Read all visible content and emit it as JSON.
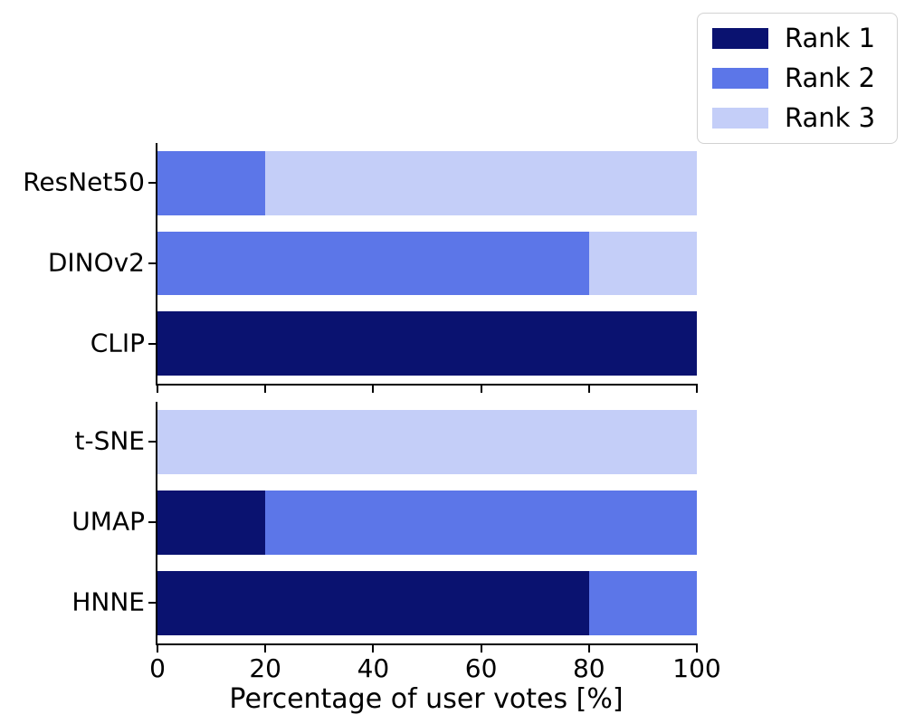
{
  "figure": {
    "background": "#ffffff"
  },
  "colors": {
    "series": [
      "#0a1270",
      "#5c76e8",
      "#c4cef8"
    ],
    "axis": "#000000",
    "text": "#000000",
    "legend_border": "#d2d2d2"
  },
  "legend": {
    "position": "upper right",
    "items": [
      {
        "label": "Rank 1",
        "color": "#0a1270"
      },
      {
        "label": "Rank 2",
        "color": "#5c76e8"
      },
      {
        "label": "Rank 3",
        "color": "#c4cef8"
      }
    ]
  },
  "x_axis": {
    "label": "Percentage of user votes [%]",
    "ticks": [
      0,
      20,
      40,
      60,
      80,
      100
    ],
    "range": [
      0,
      100
    ]
  },
  "chart_data": [
    {
      "type": "bar",
      "orientation": "horizontal",
      "stacked": true,
      "title": "",
      "xlabel": "",
      "ylabel": "",
      "xlim": [
        0,
        100
      ],
      "grid": false,
      "categories": [
        "ResNet50",
        "DINOv2",
        "CLIP"
      ],
      "series": [
        {
          "name": "Rank 1",
          "values": [
            0,
            0,
            100
          ]
        },
        {
          "name": "Rank 2",
          "values": [
            20,
            80,
            0
          ]
        },
        {
          "name": "Rank 3",
          "values": [
            80,
            20,
            0
          ]
        }
      ],
      "series_colors": [
        "#0a1270",
        "#5c76e8",
        "#c4cef8"
      ],
      "x_tick_labels_visible": false
    },
    {
      "type": "bar",
      "orientation": "horizontal",
      "stacked": true,
      "title": "",
      "xlabel": "Percentage of user votes [%]",
      "ylabel": "",
      "xlim": [
        0,
        100
      ],
      "grid": false,
      "categories": [
        "t-SNE",
        "UMAP",
        "HNNE"
      ],
      "series": [
        {
          "name": "Rank 1",
          "values": [
            0,
            20,
            80
          ]
        },
        {
          "name": "Rank 2",
          "values": [
            0,
            80,
            20
          ]
        },
        {
          "name": "Rank 3",
          "values": [
            100,
            0,
            0
          ]
        }
      ],
      "series_colors": [
        "#0a1270",
        "#5c76e8",
        "#c4cef8"
      ],
      "x_tick_labels_visible": true
    }
  ]
}
